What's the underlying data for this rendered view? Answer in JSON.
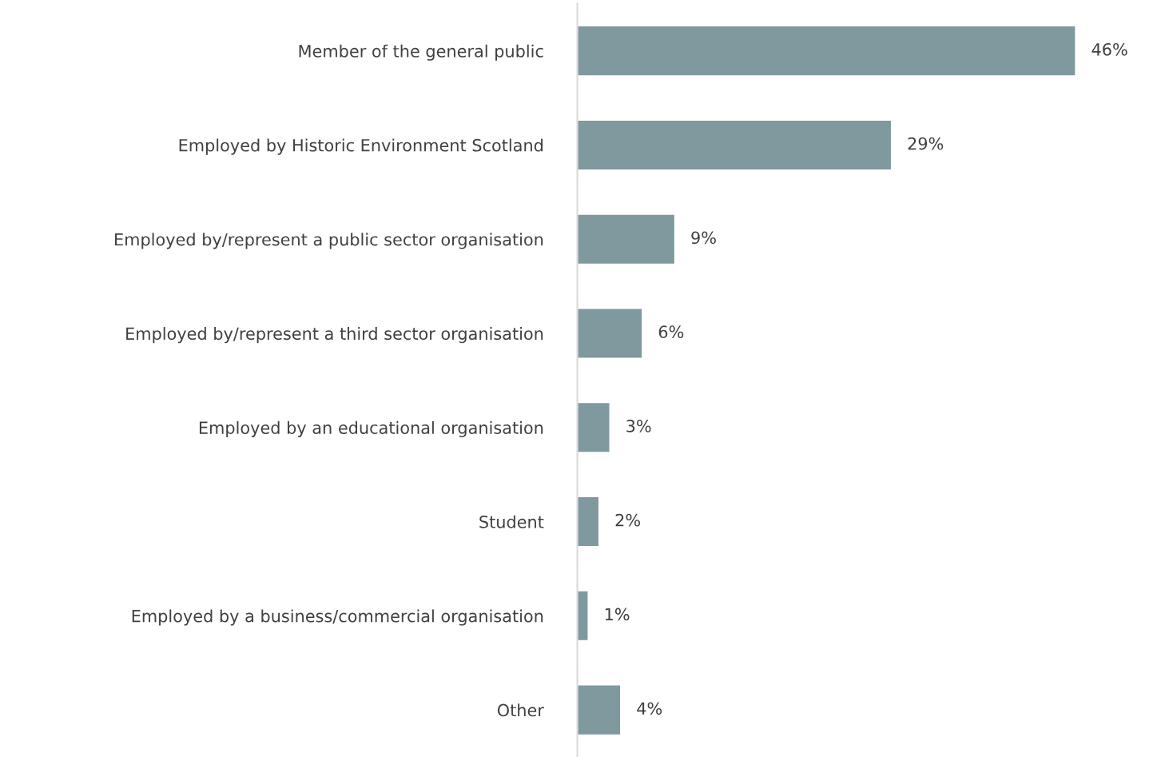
{
  "chart_data": {
    "type": "bar",
    "orientation": "horizontal",
    "categories": [
      "Member of the general public",
      "Employed by Historic Environment Scotland",
      "Employed by/represent a public sector organisation",
      "Employed by/represent a third sector organisation",
      "Employed by an educational organisation",
      "Student",
      "Employed by a business/commercial organisation",
      "Other"
    ],
    "values": [
      46,
      29,
      9,
      6,
      3,
      2,
      1,
      4
    ],
    "value_labels": [
      "46%",
      "29%",
      "9%",
      "6%",
      "3%",
      "2%",
      "1%",
      "4%"
    ],
    "color": "#7f999e"
  }
}
